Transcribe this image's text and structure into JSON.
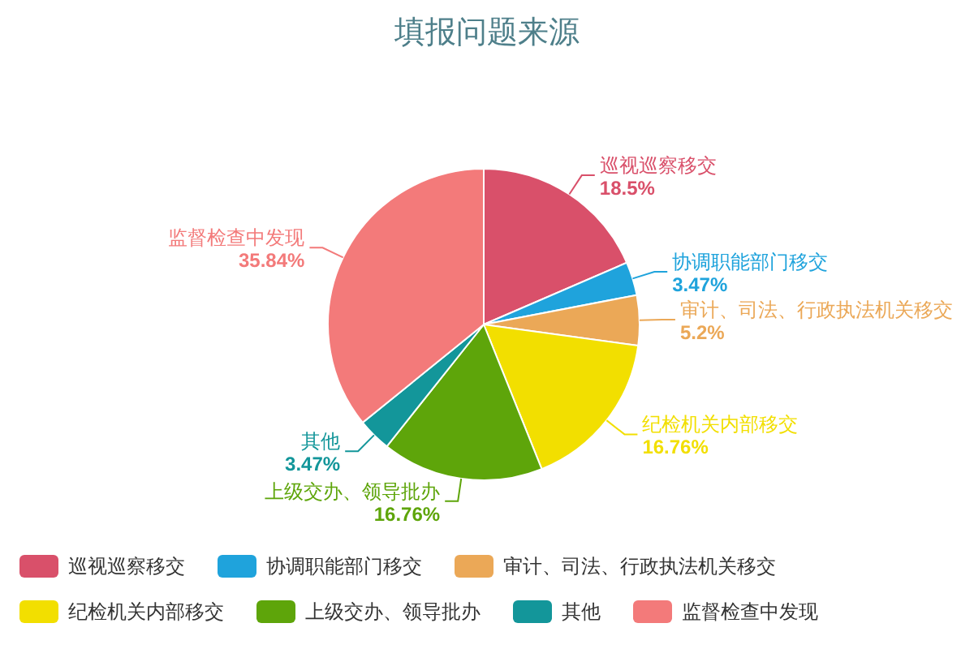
{
  "chart_data": {
    "type": "pie",
    "title": "填报问题来源",
    "categories": [
      "巡视巡察移交",
      "协调职能部门移交",
      "审计、司法、行政执法机关移交",
      "纪检机关内部移交",
      "上级交办、领导批办",
      "其他",
      "监督检查中发现"
    ],
    "values": [
      18.5,
      3.47,
      5.2,
      16.76,
      16.76,
      3.47,
      35.84
    ],
    "colors": [
      "#d9506a",
      "#1fa3dc",
      "#eba857",
      "#f2df00",
      "#5ea50a",
      "#13969a",
      "#f37a7a"
    ],
    "value_labels": [
      "18.5%",
      "3.47%",
      "5.2%",
      "16.76%",
      "16.76%",
      "3.47%",
      "35.84%"
    ],
    "legend": "bottom"
  }
}
